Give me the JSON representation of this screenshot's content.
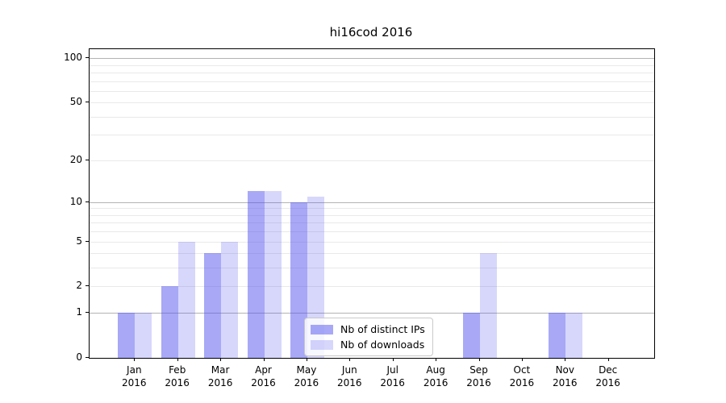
{
  "chart_data": {
    "type": "bar",
    "title": "hi16cod 2016",
    "categories": [
      "Jan",
      "Feb",
      "Mar",
      "Apr",
      "May",
      "Jun",
      "Jul",
      "Aug",
      "Sep",
      "Oct",
      "Nov",
      "Dec"
    ],
    "x_year_label": "2016",
    "series": [
      {
        "name": "Nb of distinct IPs",
        "color": "rgba(82,82,240,0.50)",
        "values": [
          1,
          2,
          4,
          12,
          10,
          0,
          0,
          0,
          1,
          0,
          1,
          0
        ]
      },
      {
        "name": "Nb of downloads",
        "color": "rgba(82,82,240,0.23)",
        "values": [
          1,
          5,
          5,
          12,
          11,
          0,
          0,
          0,
          4,
          0,
          1,
          0
        ]
      }
    ],
    "yscale": "log1p",
    "ylim": [
      0,
      115
    ],
    "ytick_values": [
      0,
      1,
      2,
      5,
      10,
      20,
      50,
      100
    ],
    "grid": {
      "major_values": [
        1,
        10,
        100
      ],
      "minor_values": [
        2,
        3,
        4,
        5,
        6,
        7,
        8,
        9,
        20,
        30,
        40,
        50,
        60,
        70,
        80,
        90
      ],
      "major_color": "#b3b3b3",
      "minor_color": "#e9e9e9"
    },
    "legend_position": "lower center"
  }
}
